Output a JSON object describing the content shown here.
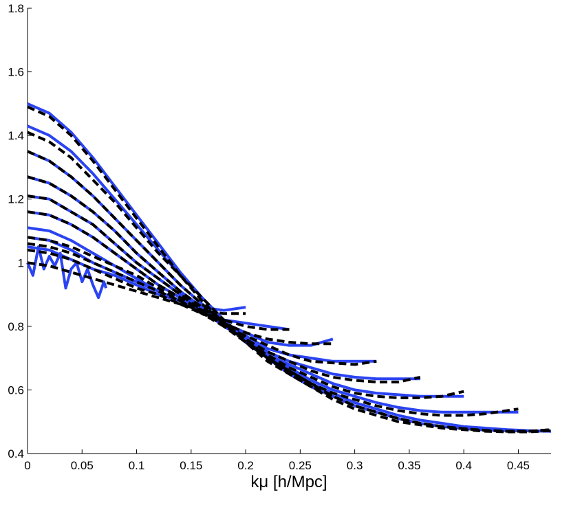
{
  "chart_data": {
    "type": "line",
    "title": "",
    "xlabel": "kμ [h/Mpc]",
    "ylabel": "",
    "xlim": [
      0,
      0.48
    ],
    "ylim": [
      0.4,
      1.8
    ],
    "xticks": [
      0,
      0.05,
      0.1,
      0.15,
      0.2,
      0.25,
      0.3,
      0.35,
      0.4,
      0.45
    ],
    "xtick_labels": [
      "0",
      "0.05",
      "0.1",
      "0.15",
      "0.2",
      "0.25",
      "0.3",
      "0.35",
      "0.4",
      "0.45"
    ],
    "yticks": [
      0.4,
      0.6,
      0.8,
      1.0,
      1.2,
      1.4,
      1.6,
      1.8
    ],
    "ytick_labels": [
      "0.4",
      "0.6",
      "0.8",
      "1",
      "1.2",
      "1.4",
      "1.6",
      "1.8"
    ],
    "grid": false,
    "colors": {
      "measured": "#2b44f2",
      "model": "#000000"
    },
    "series": [
      {
        "style": "solid",
        "color": "#2b44f2",
        "x": [
          0.0,
          0.005,
          0.01,
          0.015,
          0.02,
          0.025,
          0.03,
          0.035,
          0.04,
          0.045,
          0.05,
          0.055,
          0.06,
          0.065,
          0.07,
          0.072
        ],
        "y": [
          1.0,
          0.96,
          1.05,
          0.98,
          1.02,
          0.99,
          1.03,
          0.92,
          0.98,
          1.0,
          0.94,
          0.98,
          0.93,
          0.89,
          0.94,
          0.92
        ]
      },
      {
        "style": "solid",
        "color": "#2b44f2",
        "x": [
          0.0,
          0.02,
          0.04,
          0.06,
          0.08,
          0.1,
          0.12,
          0.14,
          0.16,
          0.18,
          0.2
        ],
        "y": [
          1.05,
          1.04,
          1.01,
          0.98,
          0.96,
          0.93,
          0.9,
          0.88,
          0.86,
          0.85,
          0.86
        ]
      },
      {
        "style": "solid",
        "color": "#2b44f2",
        "x": [
          0.0,
          0.02,
          0.04,
          0.06,
          0.08,
          0.1,
          0.12,
          0.14,
          0.16,
          0.18,
          0.2,
          0.22,
          0.24
        ],
        "y": [
          1.08,
          1.07,
          1.04,
          1.0,
          0.97,
          0.94,
          0.91,
          0.88,
          0.85,
          0.82,
          0.81,
          0.8,
          0.79
        ]
      },
      {
        "style": "solid",
        "color": "#2b44f2",
        "x": [
          0.0,
          0.02,
          0.04,
          0.06,
          0.08,
          0.1,
          0.12,
          0.14,
          0.16,
          0.18,
          0.2,
          0.22,
          0.24,
          0.26,
          0.28
        ],
        "y": [
          1.11,
          1.1,
          1.07,
          1.03,
          0.99,
          0.95,
          0.91,
          0.88,
          0.85,
          0.81,
          0.78,
          0.75,
          0.74,
          0.74,
          0.76
        ]
      },
      {
        "style": "solid",
        "color": "#2b44f2",
        "x": [
          0.0,
          0.02,
          0.04,
          0.06,
          0.08,
          0.1,
          0.12,
          0.14,
          0.16,
          0.18,
          0.2,
          0.22,
          0.24,
          0.26,
          0.28,
          0.3,
          0.32
        ],
        "y": [
          1.16,
          1.15,
          1.12,
          1.08,
          1.03,
          0.98,
          0.93,
          0.89,
          0.85,
          0.81,
          0.77,
          0.73,
          0.71,
          0.7,
          0.69,
          0.69,
          0.69
        ]
      },
      {
        "style": "solid",
        "color": "#2b44f2",
        "x": [
          0.0,
          0.02,
          0.04,
          0.06,
          0.08,
          0.1,
          0.12,
          0.14,
          0.16,
          0.18,
          0.2,
          0.22,
          0.24,
          0.26,
          0.28,
          0.3,
          0.32,
          0.34,
          0.36
        ],
        "y": [
          1.21,
          1.2,
          1.16,
          1.12,
          1.06,
          1.0,
          0.95,
          0.9,
          0.85,
          0.8,
          0.76,
          0.72,
          0.69,
          0.67,
          0.65,
          0.64,
          0.635,
          0.635,
          0.635
        ]
      },
      {
        "style": "solid",
        "color": "#2b44f2",
        "x": [
          0.0,
          0.02,
          0.04,
          0.06,
          0.08,
          0.1,
          0.12,
          0.14,
          0.16,
          0.18,
          0.2,
          0.22,
          0.24,
          0.26,
          0.28,
          0.3,
          0.32,
          0.34,
          0.36,
          0.38,
          0.4
        ],
        "y": [
          1.27,
          1.25,
          1.21,
          1.16,
          1.1,
          1.03,
          0.97,
          0.91,
          0.86,
          0.81,
          0.76,
          0.71,
          0.68,
          0.65,
          0.62,
          0.6,
          0.59,
          0.585,
          0.58,
          0.58,
          0.58
        ]
      },
      {
        "style": "solid",
        "color": "#2b44f2",
        "x": [
          0.0,
          0.02,
          0.04,
          0.06,
          0.08,
          0.1,
          0.12,
          0.14,
          0.16,
          0.18,
          0.2,
          0.22,
          0.24,
          0.26,
          0.28,
          0.3,
          0.32,
          0.34,
          0.36,
          0.38,
          0.4,
          0.42,
          0.45
        ],
        "y": [
          1.35,
          1.32,
          1.27,
          1.21,
          1.14,
          1.07,
          1.0,
          0.93,
          0.87,
          0.81,
          0.76,
          0.71,
          0.67,
          0.63,
          0.6,
          0.58,
          0.56,
          0.545,
          0.535,
          0.53,
          0.53,
          0.53,
          0.53
        ]
      },
      {
        "style": "solid",
        "color": "#2b44f2",
        "x": [
          0.0,
          0.02,
          0.04,
          0.06,
          0.08,
          0.1,
          0.12,
          0.14,
          0.16,
          0.18,
          0.2,
          0.22,
          0.24,
          0.26,
          0.28,
          0.3,
          0.32,
          0.34,
          0.36,
          0.38,
          0.4,
          0.42,
          0.44,
          0.46,
          0.48
        ],
        "y": [
          1.43,
          1.4,
          1.35,
          1.28,
          1.2,
          1.12,
          1.04,
          0.96,
          0.89,
          0.82,
          0.76,
          0.71,
          0.66,
          0.62,
          0.59,
          0.56,
          0.54,
          0.52,
          0.505,
          0.495,
          0.485,
          0.48,
          0.475,
          0.472,
          0.47
        ]
      },
      {
        "style": "solid",
        "color": "#2b44f2",
        "x": [
          0.0,
          0.02,
          0.04,
          0.06,
          0.08,
          0.1,
          0.12,
          0.14,
          0.16,
          0.18,
          0.2,
          0.22,
          0.24,
          0.26,
          0.28,
          0.3,
          0.32,
          0.34,
          0.36,
          0.38,
          0.4,
          0.42,
          0.44,
          0.46,
          0.48
        ],
        "y": [
          1.5,
          1.47,
          1.41,
          1.33,
          1.24,
          1.15,
          1.06,
          0.97,
          0.89,
          0.82,
          0.75,
          0.7,
          0.65,
          0.61,
          0.58,
          0.55,
          0.53,
          0.51,
          0.495,
          0.485,
          0.478,
          0.474,
          0.472,
          0.471,
          0.47
        ]
      },
      {
        "style": "dashed",
        "color": "#000000",
        "x": [
          0.0,
          0.02,
          0.04,
          0.06,
          0.08,
          0.1,
          0.12,
          0.14,
          0.16,
          0.18,
          0.2
        ],
        "y": [
          1.0,
          0.99,
          0.97,
          0.95,
          0.93,
          0.91,
          0.89,
          0.87,
          0.85,
          0.84,
          0.84
        ]
      },
      {
        "style": "dashed",
        "color": "#000000",
        "x": [
          0.0,
          0.02,
          0.04,
          0.06,
          0.08,
          0.1,
          0.12,
          0.14,
          0.16,
          0.18,
          0.2,
          0.22,
          0.24
        ],
        "y": [
          1.04,
          1.03,
          1.01,
          0.98,
          0.95,
          0.92,
          0.9,
          0.87,
          0.84,
          0.82,
          0.8,
          0.79,
          0.79
        ]
      },
      {
        "style": "dashed",
        "color": "#000000",
        "x": [
          0.0,
          0.02,
          0.04,
          0.06,
          0.08,
          0.1,
          0.12,
          0.14,
          0.16,
          0.18,
          0.2,
          0.22,
          0.24,
          0.26,
          0.28
        ],
        "y": [
          1.06,
          1.05,
          1.03,
          1.0,
          0.97,
          0.94,
          0.91,
          0.88,
          0.84,
          0.81,
          0.78,
          0.76,
          0.75,
          0.745,
          0.745
        ]
      },
      {
        "style": "dashed",
        "color": "#000000",
        "x": [
          0.0,
          0.02,
          0.04,
          0.06,
          0.08,
          0.1,
          0.12,
          0.14,
          0.16,
          0.18,
          0.2,
          0.22,
          0.24,
          0.26,
          0.28,
          0.3,
          0.32
        ],
        "y": [
          1.08,
          1.07,
          1.05,
          1.02,
          0.99,
          0.96,
          0.92,
          0.88,
          0.84,
          0.8,
          0.77,
          0.74,
          0.71,
          0.69,
          0.685,
          0.68,
          0.69
        ]
      },
      {
        "style": "dashed",
        "color": "#000000",
        "x": [
          0.0,
          0.02,
          0.04,
          0.06,
          0.08,
          0.1,
          0.12,
          0.14,
          0.16,
          0.18,
          0.2,
          0.22,
          0.24,
          0.26,
          0.28,
          0.3,
          0.32,
          0.34,
          0.36
        ],
        "y": [
          1.16,
          1.15,
          1.12,
          1.08,
          1.03,
          0.98,
          0.93,
          0.89,
          0.85,
          0.81,
          0.76,
          0.72,
          0.69,
          0.66,
          0.64,
          0.63,
          0.625,
          0.625,
          0.64
        ]
      },
      {
        "style": "dashed",
        "color": "#000000",
        "x": [
          0.0,
          0.02,
          0.04,
          0.06,
          0.08,
          0.1,
          0.12,
          0.14,
          0.16,
          0.18,
          0.2,
          0.22,
          0.24,
          0.26,
          0.28,
          0.3,
          0.32,
          0.34,
          0.36,
          0.38,
          0.4
        ],
        "y": [
          1.21,
          1.2,
          1.16,
          1.12,
          1.06,
          1.0,
          0.95,
          0.9,
          0.85,
          0.8,
          0.75,
          0.71,
          0.67,
          0.64,
          0.61,
          0.59,
          0.58,
          0.575,
          0.575,
          0.58,
          0.595
        ]
      },
      {
        "style": "dashed",
        "color": "#000000",
        "x": [
          0.0,
          0.02,
          0.04,
          0.06,
          0.08,
          0.1,
          0.12,
          0.14,
          0.16,
          0.18,
          0.2,
          0.22,
          0.24,
          0.26,
          0.28,
          0.3,
          0.32,
          0.34,
          0.36,
          0.38,
          0.4,
          0.42,
          0.45
        ],
        "y": [
          1.27,
          1.25,
          1.21,
          1.16,
          1.1,
          1.03,
          0.97,
          0.91,
          0.86,
          0.81,
          0.75,
          0.7,
          0.66,
          0.62,
          0.59,
          0.57,
          0.55,
          0.535,
          0.525,
          0.52,
          0.52,
          0.525,
          0.54
        ]
      },
      {
        "style": "dashed",
        "color": "#000000",
        "x": [
          0.0,
          0.02,
          0.04,
          0.06,
          0.08,
          0.1,
          0.12,
          0.14,
          0.16,
          0.18,
          0.2,
          0.22,
          0.24,
          0.26,
          0.28,
          0.3,
          0.32,
          0.34,
          0.36,
          0.38,
          0.4,
          0.42,
          0.44,
          0.46,
          0.48
        ],
        "y": [
          1.35,
          1.32,
          1.27,
          1.21,
          1.14,
          1.07,
          1.0,
          0.93,
          0.87,
          0.81,
          0.75,
          0.7,
          0.65,
          0.61,
          0.58,
          0.55,
          0.53,
          0.51,
          0.495,
          0.485,
          0.478,
          0.472,
          0.47,
          0.47,
          0.475
        ]
      },
      {
        "style": "dashed",
        "color": "#000000",
        "x": [
          0.0,
          0.02,
          0.04,
          0.06,
          0.08,
          0.1,
          0.12,
          0.14,
          0.16,
          0.18,
          0.2,
          0.22,
          0.24,
          0.26,
          0.28,
          0.3,
          0.32,
          0.34,
          0.36,
          0.38,
          0.4,
          0.42,
          0.44,
          0.46,
          0.48
        ],
        "y": [
          1.41,
          1.38,
          1.33,
          1.26,
          1.19,
          1.11,
          1.03,
          0.96,
          0.89,
          0.82,
          0.76,
          0.7,
          0.66,
          0.62,
          0.58,
          0.55,
          0.53,
          0.51,
          0.495,
          0.485,
          0.478,
          0.473,
          0.47,
          0.47,
          0.475
        ]
      },
      {
        "style": "dashed",
        "color": "#000000",
        "x": [
          0.0,
          0.02,
          0.04,
          0.06,
          0.08,
          0.1,
          0.12,
          0.14,
          0.16,
          0.18,
          0.2,
          0.22,
          0.24,
          0.26,
          0.28,
          0.3,
          0.32,
          0.34,
          0.36,
          0.38,
          0.4,
          0.42,
          0.44,
          0.46,
          0.48
        ],
        "y": [
          1.49,
          1.46,
          1.4,
          1.32,
          1.23,
          1.14,
          1.05,
          0.96,
          0.88,
          0.81,
          0.75,
          0.69,
          0.65,
          0.61,
          0.57,
          0.54,
          0.52,
          0.5,
          0.49,
          0.48,
          0.475,
          0.47,
          0.468,
          0.468,
          0.472
        ]
      }
    ]
  }
}
